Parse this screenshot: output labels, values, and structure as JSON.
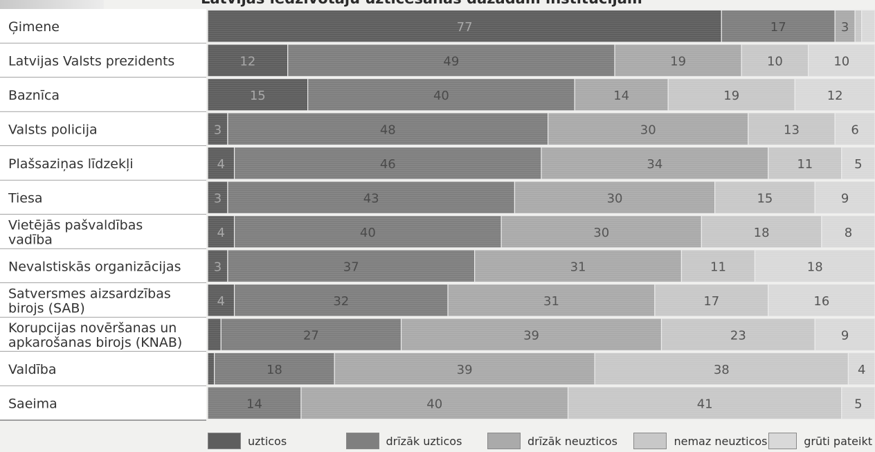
{
  "chart_data": {
    "type": "bar",
    "orientation": "horizontal",
    "stacked": true,
    "title": "Latvijas iedzīvotāju uzticēšanās dažādām institūcijām",
    "xlim": [
      0,
      100
    ],
    "categories": [
      "Ģimene",
      "Latvijas Valsts prezidents",
      "Baznīca",
      "Valsts policija",
      "Plašsaziņas līdzekļi",
      "Tiesa",
      "Vietējās pašvaldības vadība",
      "Nevalstiskās organizācijas",
      "Satversmes aizsardzības birojs (SAB)",
      "Korupcijas novēršanas un apkarošanas birojs (KNAB)",
      "Valdība",
      "Saeima"
    ],
    "category_lines": [
      [
        "Ģimene"
      ],
      [
        "Latvijas Valsts prezidents"
      ],
      [
        "Baznīca"
      ],
      [
        "Valsts policija"
      ],
      [
        "Plašsaziņas līdzekļi"
      ],
      [
        "Tiesa"
      ],
      [
        "Vietējās pašvaldības",
        "vadība"
      ],
      [
        "Nevalstiskās organizācijas"
      ],
      [
        "Satversmes aizsardzības",
        "birojs (SAB)"
      ],
      [
        "Korupcijas novēršanas un",
        "apkarošanas birojs (KNAB)"
      ],
      [
        "Valdība"
      ],
      [
        "Saeima"
      ]
    ],
    "series": [
      {
        "name": "uzticos",
        "color": "#5e5e5e",
        "text_color": "#a9a9a9",
        "values": [
          77,
          12,
          15,
          3,
          4,
          3,
          4,
          3,
          4,
          2,
          1,
          0
        ]
      },
      {
        "name": "drīzāk uzticos",
        "color": "#7f7f7f",
        "text_color": "#4a4a4a",
        "values": [
          17,
          49,
          40,
          48,
          46,
          43,
          40,
          37,
          32,
          27,
          18,
          14
        ]
      },
      {
        "name": "drīzāk neuzticos",
        "color": "#aaaaaa",
        "text_color": "#555555",
        "values": [
          3,
          19,
          14,
          30,
          34,
          30,
          30,
          31,
          31,
          39,
          39,
          40
        ]
      },
      {
        "name": "nemaz neuzticos",
        "color": "#c8c8c8",
        "text_color": "#555555",
        "values": [
          1,
          10,
          19,
          13,
          11,
          15,
          18,
          11,
          17,
          23,
          38,
          41
        ]
      },
      {
        "name": "grūti pateikt",
        "color": "#d9d9d9",
        "text_color": "#555555",
        "values": [
          2,
          10,
          12,
          6,
          5,
          9,
          8,
          18,
          16,
          9,
          4,
          5
        ]
      }
    ],
    "label_threshold": 3,
    "legend_position": "bottom"
  }
}
